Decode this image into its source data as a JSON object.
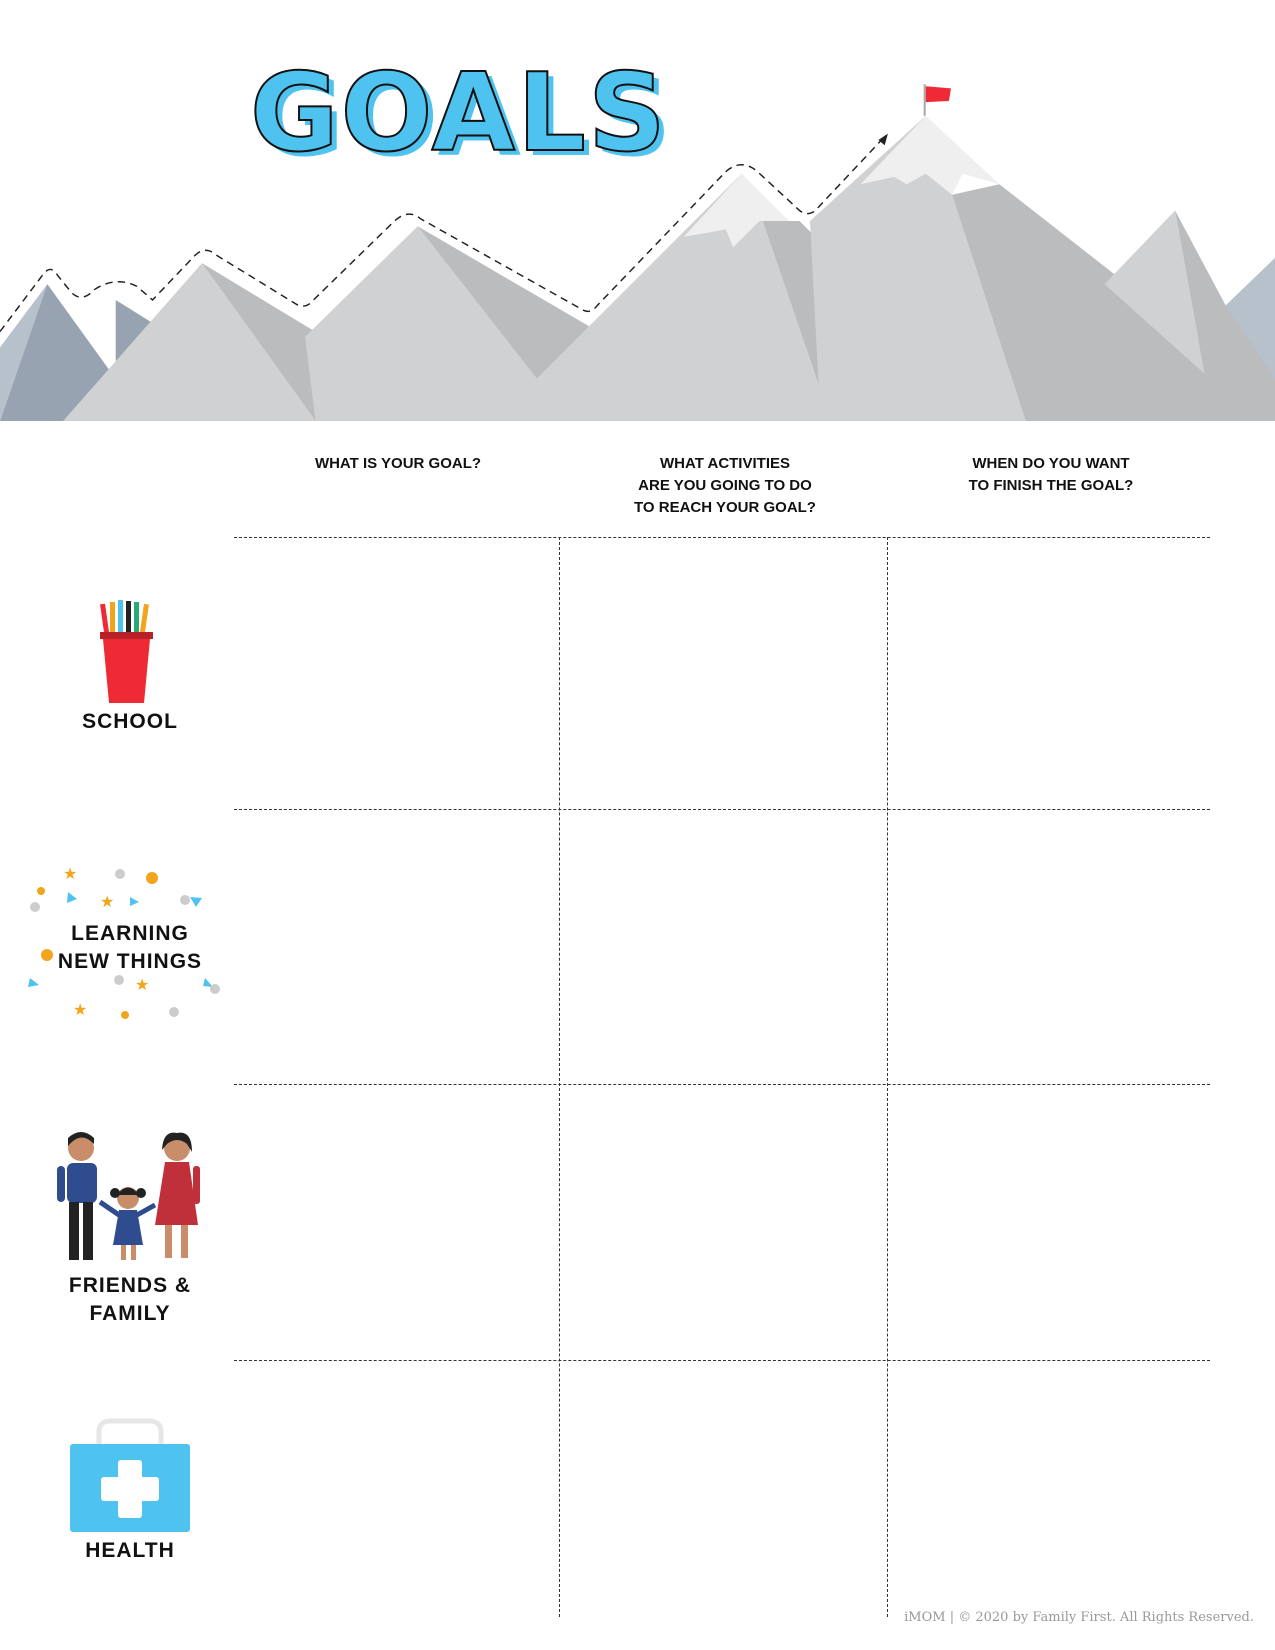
{
  "title": "GOALS",
  "columns": [
    {
      "label": "WHAT IS YOUR GOAL?"
    },
    {
      "label": "WHAT ACTIVITIES\nARE YOU GOING TO DO\nTO REACH YOUR GOAL?"
    },
    {
      "label": "WHEN DO YOU WANT\nTO FINISH THE GOAL?"
    }
  ],
  "rows": [
    {
      "label": "SCHOOL",
      "icon": "pencil-cup-icon"
    },
    {
      "label": "LEARNING\nNEW THINGS",
      "icon": "confetti-icon"
    },
    {
      "label": "FRIENDS &\nFAMILY",
      "icon": "family-icon"
    },
    {
      "label": "HEALTH",
      "icon": "first-aid-kit-icon"
    }
  ],
  "footer": "iMOM | © 2020 by Family First. All Rights Reserved.",
  "colors": {
    "title": "#4fc3ef",
    "flag": "#ee2a35",
    "cup": "#ee2a35",
    "kit": "#4fc3ef"
  }
}
